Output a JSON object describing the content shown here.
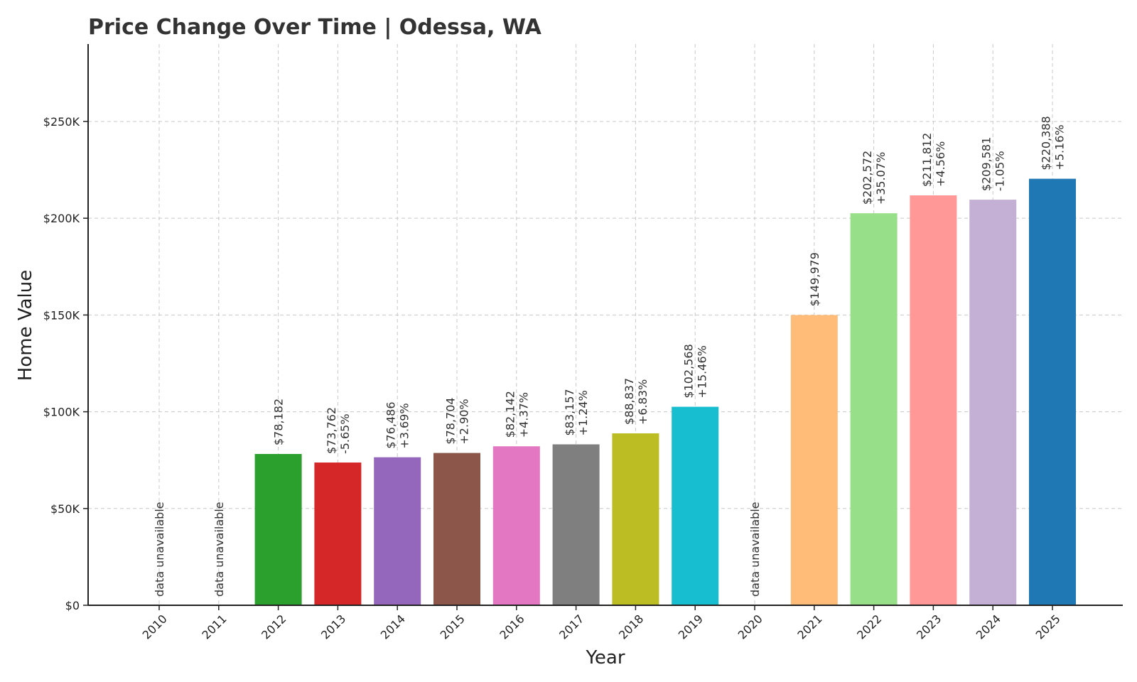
{
  "chart_data": {
    "type": "bar",
    "title": "Price Change Over Time | Odessa, WA",
    "xlabel": "Year",
    "ylabel": "Home Value",
    "ylim": [
      0,
      290000
    ],
    "grid": true,
    "yticks": [
      {
        "value": 0,
        "label": "$0"
      },
      {
        "value": 50000,
        "label": "$50K"
      },
      {
        "value": 100000,
        "label": "$100K"
      },
      {
        "value": 150000,
        "label": "$150K"
      },
      {
        "value": 200000,
        "label": "$200K"
      },
      {
        "value": 250000,
        "label": "$250K"
      }
    ],
    "unavailable_label": "data unavailable",
    "bars": [
      {
        "year": "2010",
        "value": null,
        "price": "",
        "change": "",
        "color": "#1f77b4"
      },
      {
        "year": "2011",
        "value": null,
        "price": "",
        "change": "",
        "color": "#ff7f0e"
      },
      {
        "year": "2012",
        "value": 78182,
        "price": "$78,182",
        "change": "",
        "color": "#2ca02c"
      },
      {
        "year": "2013",
        "value": 73762,
        "price": "$73,762",
        "change": "-5.65%",
        "color": "#d62728"
      },
      {
        "year": "2014",
        "value": 76486,
        "price": "$76,486",
        "change": "+3.69%",
        "color": "#9467bd"
      },
      {
        "year": "2015",
        "value": 78704,
        "price": "$78,704",
        "change": "+2.90%",
        "color": "#8c564b"
      },
      {
        "year": "2016",
        "value": 82142,
        "price": "$82,142",
        "change": "+4.37%",
        "color": "#e377c2"
      },
      {
        "year": "2017",
        "value": 83157,
        "price": "$83,157",
        "change": "+1.24%",
        "color": "#7f7f7f"
      },
      {
        "year": "2018",
        "value": 88837,
        "price": "$88,837",
        "change": "+6.83%",
        "color": "#bcbd22"
      },
      {
        "year": "2019",
        "value": 102568,
        "price": "$102,568",
        "change": "+15.46%",
        "color": "#17becf"
      },
      {
        "year": "2020",
        "value": null,
        "price": "",
        "change": "",
        "color": "#aec7e8"
      },
      {
        "year": "2021",
        "value": 149979,
        "price": "$149,979",
        "change": "",
        "color": "#ffbb78"
      },
      {
        "year": "2022",
        "value": 202572,
        "price": "$202,572",
        "change": "+35.07%",
        "color": "#98df8a"
      },
      {
        "year": "2023",
        "value": 211812,
        "price": "$211,812",
        "change": "+4.56%",
        "color": "#ff9896"
      },
      {
        "year": "2024",
        "value": 209581,
        "price": "$209,581",
        "change": "-1.05%",
        "color": "#c5b0d5"
      },
      {
        "year": "2025",
        "value": 220388,
        "price": "$220,388",
        "change": "+5.16%",
        "color": "#1f77b4"
      }
    ]
  }
}
